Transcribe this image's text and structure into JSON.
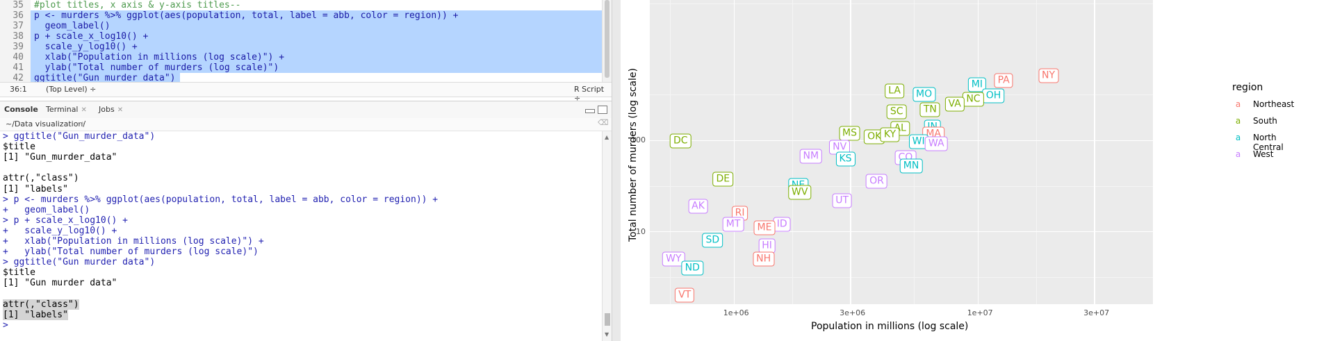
{
  "editor": {
    "lines": [
      {
        "num": "35",
        "text": "#plot titles, x axis & y-axis titles--",
        "comment": true,
        "selected": false
      },
      {
        "num": "36",
        "text": "p <- murders %>% ggplot(aes(population, total, label = abb, color = region)) +",
        "selected": true
      },
      {
        "num": "37",
        "text": "  geom_label()",
        "selected": true
      },
      {
        "num": "38",
        "text": "p + scale_x_log10() +",
        "selected": true
      },
      {
        "num": "39",
        "text": "  scale_y_log10() +",
        "selected": true
      },
      {
        "num": "40",
        "text": "  xlab(\"Population in millions (log scale)\") +",
        "selected": true
      },
      {
        "num": "41",
        "text": "  ylab(\"Total number of murders (log scale)\")",
        "selected": true
      },
      {
        "num": "42",
        "text": "ggtitle(\"Gun murder data\")",
        "selected": true
      }
    ],
    "status": {
      "position": "36:1",
      "scope": "(Top Level) ÷",
      "file_type": "R Script ÷"
    }
  },
  "console_tabs": [
    {
      "label": "Console",
      "active": true,
      "closable": false
    },
    {
      "label": "Terminal",
      "active": false,
      "closable": true
    },
    {
      "label": "Jobs",
      "active": false,
      "closable": true
    }
  ],
  "console": {
    "path": "~/Data visualization/",
    "lines": [
      {
        "text": "> ggtitle(\"Gun_murder_data\")",
        "kind": "in"
      },
      {
        "text": "$title",
        "kind": "out"
      },
      {
        "text": "[1] \"Gun_murder_data\"",
        "kind": "out"
      },
      {
        "text": "",
        "kind": "out"
      },
      {
        "text": "attr(,\"class\")",
        "kind": "out"
      },
      {
        "text": "[1] \"labels\"",
        "kind": "out"
      },
      {
        "text": "> p <- murders %>% ggplot(aes(population, total, label = abb, color = region)) +",
        "kind": "in"
      },
      {
        "text": "+   geom_label()",
        "kind": "in"
      },
      {
        "text": "> p + scale_x_log10() +",
        "kind": "in"
      },
      {
        "text": "+   scale_y_log10() +",
        "kind": "in"
      },
      {
        "text": "+   xlab(\"Population in millions (log scale)\") +",
        "kind": "in"
      },
      {
        "text": "+   ylab(\"Total number of murders (log scale)\")",
        "kind": "in"
      },
      {
        "text": "> ggtitle(\"Gun murder data\")",
        "kind": "in"
      },
      {
        "text": "$title",
        "kind": "out"
      },
      {
        "text": "[1] \"Gun murder data\"",
        "kind": "out"
      },
      {
        "text": "",
        "kind": "out"
      },
      {
        "text": "attr(,\"class\")",
        "kind": "out",
        "highlight": true
      },
      {
        "text": "[1] \"labels\"",
        "kind": "out",
        "highlight": true
      },
      {
        "text": "> ",
        "kind": "in"
      }
    ]
  },
  "colors": {
    "Northeast": "#F8766D",
    "South": "#7CAE00",
    "North Central": "#00BFC4",
    "West": "#C77CFF"
  },
  "chart_data": {
    "type": "scatter",
    "xlabel": "Population in millions (log scale)",
    "ylabel": "Total number of murders (log scale)",
    "x_scale": "log10",
    "y_scale": "log10",
    "xlim": [
      450000,
      52000000
    ],
    "ylim": [
      1.6,
      3500
    ],
    "x_ticks": [
      {
        "value": 1000000,
        "label": "1e+06"
      },
      {
        "value": 3000000,
        "label": "3e+06"
      },
      {
        "value": 10000000,
        "label": "1e+07"
      },
      {
        "value": 30000000,
        "label": "3e+07"
      }
    ],
    "y_ticks": [
      {
        "value": 10,
        "label": "10"
      },
      {
        "value": 100,
        "label": "100"
      }
    ],
    "grid": true,
    "legend": {
      "title": "region",
      "position": "right",
      "key_glyph": "a",
      "entries": [
        "Northeast",
        "South",
        "North Central",
        "West"
      ]
    },
    "points": [
      {
        "abb": "DC",
        "region": "South",
        "x": 601723,
        "y": 99
      },
      {
        "abb": "LA",
        "region": "South",
        "x": 4533372,
        "y": 351
      },
      {
        "abb": "MO",
        "region": "North Central",
        "x": 5988927,
        "y": 321
      },
      {
        "abb": "MI",
        "region": "North Central",
        "x": 9883640,
        "y": 413
      },
      {
        "abb": "PA",
        "region": "Northeast",
        "x": 12702379,
        "y": 457
      },
      {
        "abb": "NY",
        "region": "Northeast",
        "x": 19378102,
        "y": 517
      },
      {
        "abb": "OH",
        "region": "North Central",
        "x": 11536504,
        "y": 310
      },
      {
        "abb": "NC",
        "region": "South",
        "x": 9535483,
        "y": 286
      },
      {
        "abb": "VA",
        "region": "South",
        "x": 8001024,
        "y": 250
      },
      {
        "abb": "SC",
        "region": "South",
        "x": 4625364,
        "y": 207
      },
      {
        "abb": "TN",
        "region": "South",
        "x": 6346105,
        "y": 219
      },
      {
        "abb": "AL",
        "region": "South",
        "x": 4779736,
        "y": 135
      },
      {
        "abb": "MS",
        "region": "South",
        "x": 2967297,
        "y": 120
      },
      {
        "abb": "OK",
        "region": "South",
        "x": 3751351,
        "y": 111
      },
      {
        "abb": "KY",
        "region": "South",
        "x": 4339367,
        "y": 116
      },
      {
        "abb": "IN",
        "region": "North Central",
        "x": 6483802,
        "y": 142
      },
      {
        "abb": "MA",
        "region": "Northeast",
        "x": 6547629,
        "y": 118
      },
      {
        "abb": "WI",
        "region": "North Central",
        "x": 5686986,
        "y": 97
      },
      {
        "abb": "WA",
        "region": "West",
        "x": 6724540,
        "y": 93
      },
      {
        "abb": "NV",
        "region": "West",
        "x": 2700551,
        "y": 84
      },
      {
        "abb": "NM",
        "region": "West",
        "x": 2059179,
        "y": 67
      },
      {
        "abb": "KS",
        "region": "North Central",
        "x": 2853118,
        "y": 63
      },
      {
        "abb": "CO",
        "region": "West",
        "x": 5029196,
        "y": 65
      },
      {
        "abb": "MN",
        "region": "North Central",
        "x": 5303925,
        "y": 53
      },
      {
        "abb": "DE",
        "region": "South",
        "x": 897934,
        "y": 38
      },
      {
        "abb": "OR",
        "region": "West",
        "x": 3831074,
        "y": 36
      },
      {
        "abb": "NE",
        "region": "North Central",
        "x": 1826341,
        "y": 32
      },
      {
        "abb": "WV",
        "region": "South",
        "x": 1852994,
        "y": 27
      },
      {
        "abb": "UT",
        "region": "West",
        "x": 2763885,
        "y": 22
      },
      {
        "abb": "AK",
        "region": "West",
        "x": 710231,
        "y": 19
      },
      {
        "abb": "RI",
        "region": "Northeast",
        "x": 1052567,
        "y": 16
      },
      {
        "abb": "MT",
        "region": "West",
        "x": 989415,
        "y": 12
      },
      {
        "abb": "ID",
        "region": "West",
        "x": 1567582,
        "y": 12
      },
      {
        "abb": "ME",
        "region": "Northeast",
        "x": 1328361,
        "y": 11
      },
      {
        "abb": "SD",
        "region": "North Central",
        "x": 814180,
        "y": 8
      },
      {
        "abb": "HI",
        "region": "West",
        "x": 1360301,
        "y": 7
      },
      {
        "abb": "NH",
        "region": "Northeast",
        "x": 1316470,
        "y": 5
      },
      {
        "abb": "WY",
        "region": "West",
        "x": 563626,
        "y": 5
      },
      {
        "abb": "ND",
        "region": "North Central",
        "x": 672591,
        "y": 4
      },
      {
        "abb": "VT",
        "region": "Northeast",
        "x": 625741,
        "y": 2
      }
    ]
  }
}
